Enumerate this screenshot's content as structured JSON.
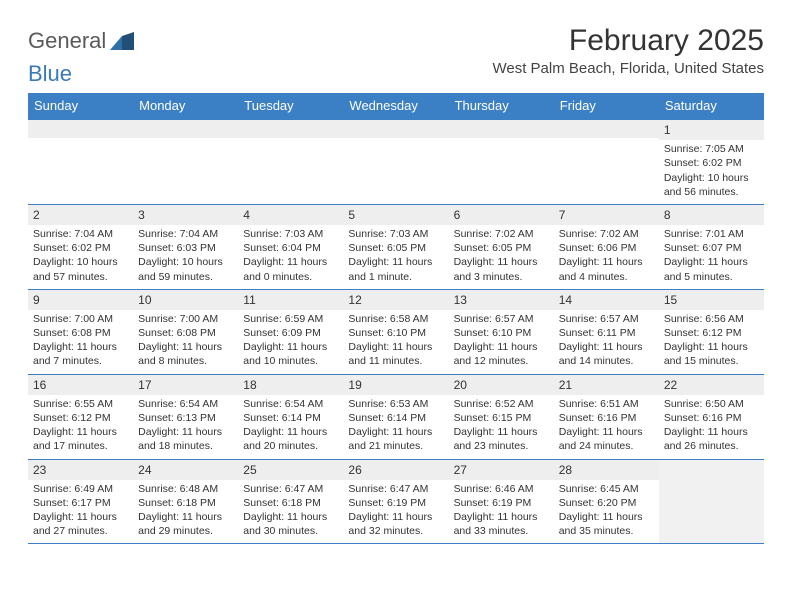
{
  "logo": {
    "general": "General",
    "blue": "Blue"
  },
  "title": "February 2025",
  "location": "West Palm Beach, Florida, United States",
  "colors": {
    "header_bg": "#3b7fc4",
    "header_text": "#ffffff",
    "band_bg": "#eeeeee",
    "border": "#3b7fc4",
    "text": "#333333",
    "logo_gray": "#5a5a5a",
    "logo_blue": "#3a7ab8",
    "page_bg": "#ffffff"
  },
  "weekdays": [
    "Sunday",
    "Monday",
    "Tuesday",
    "Wednesday",
    "Thursday",
    "Friday",
    "Saturday"
  ],
  "weeks": [
    [
      null,
      null,
      null,
      null,
      null,
      null,
      {
        "n": "1",
        "sunrise": "Sunrise: 7:05 AM",
        "sunset": "Sunset: 6:02 PM",
        "daylight": "Daylight: 10 hours and 56 minutes."
      }
    ],
    [
      {
        "n": "2",
        "sunrise": "Sunrise: 7:04 AM",
        "sunset": "Sunset: 6:02 PM",
        "daylight": "Daylight: 10 hours and 57 minutes."
      },
      {
        "n": "3",
        "sunrise": "Sunrise: 7:04 AM",
        "sunset": "Sunset: 6:03 PM",
        "daylight": "Daylight: 10 hours and 59 minutes."
      },
      {
        "n": "4",
        "sunrise": "Sunrise: 7:03 AM",
        "sunset": "Sunset: 6:04 PM",
        "daylight": "Daylight: 11 hours and 0 minutes."
      },
      {
        "n": "5",
        "sunrise": "Sunrise: 7:03 AM",
        "sunset": "Sunset: 6:05 PM",
        "daylight": "Daylight: 11 hours and 1 minute."
      },
      {
        "n": "6",
        "sunrise": "Sunrise: 7:02 AM",
        "sunset": "Sunset: 6:05 PM",
        "daylight": "Daylight: 11 hours and 3 minutes."
      },
      {
        "n": "7",
        "sunrise": "Sunrise: 7:02 AM",
        "sunset": "Sunset: 6:06 PM",
        "daylight": "Daylight: 11 hours and 4 minutes."
      },
      {
        "n": "8",
        "sunrise": "Sunrise: 7:01 AM",
        "sunset": "Sunset: 6:07 PM",
        "daylight": "Daylight: 11 hours and 5 minutes."
      }
    ],
    [
      {
        "n": "9",
        "sunrise": "Sunrise: 7:00 AM",
        "sunset": "Sunset: 6:08 PM",
        "daylight": "Daylight: 11 hours and 7 minutes."
      },
      {
        "n": "10",
        "sunrise": "Sunrise: 7:00 AM",
        "sunset": "Sunset: 6:08 PM",
        "daylight": "Daylight: 11 hours and 8 minutes."
      },
      {
        "n": "11",
        "sunrise": "Sunrise: 6:59 AM",
        "sunset": "Sunset: 6:09 PM",
        "daylight": "Daylight: 11 hours and 10 minutes."
      },
      {
        "n": "12",
        "sunrise": "Sunrise: 6:58 AM",
        "sunset": "Sunset: 6:10 PM",
        "daylight": "Daylight: 11 hours and 11 minutes."
      },
      {
        "n": "13",
        "sunrise": "Sunrise: 6:57 AM",
        "sunset": "Sunset: 6:10 PM",
        "daylight": "Daylight: 11 hours and 12 minutes."
      },
      {
        "n": "14",
        "sunrise": "Sunrise: 6:57 AM",
        "sunset": "Sunset: 6:11 PM",
        "daylight": "Daylight: 11 hours and 14 minutes."
      },
      {
        "n": "15",
        "sunrise": "Sunrise: 6:56 AM",
        "sunset": "Sunset: 6:12 PM",
        "daylight": "Daylight: 11 hours and 15 minutes."
      }
    ],
    [
      {
        "n": "16",
        "sunrise": "Sunrise: 6:55 AM",
        "sunset": "Sunset: 6:12 PM",
        "daylight": "Daylight: 11 hours and 17 minutes."
      },
      {
        "n": "17",
        "sunrise": "Sunrise: 6:54 AM",
        "sunset": "Sunset: 6:13 PM",
        "daylight": "Daylight: 11 hours and 18 minutes."
      },
      {
        "n": "18",
        "sunrise": "Sunrise: 6:54 AM",
        "sunset": "Sunset: 6:14 PM",
        "daylight": "Daylight: 11 hours and 20 minutes."
      },
      {
        "n": "19",
        "sunrise": "Sunrise: 6:53 AM",
        "sunset": "Sunset: 6:14 PM",
        "daylight": "Daylight: 11 hours and 21 minutes."
      },
      {
        "n": "20",
        "sunrise": "Sunrise: 6:52 AM",
        "sunset": "Sunset: 6:15 PM",
        "daylight": "Daylight: 11 hours and 23 minutes."
      },
      {
        "n": "21",
        "sunrise": "Sunrise: 6:51 AM",
        "sunset": "Sunset: 6:16 PM",
        "daylight": "Daylight: 11 hours and 24 minutes."
      },
      {
        "n": "22",
        "sunrise": "Sunrise: 6:50 AM",
        "sunset": "Sunset: 6:16 PM",
        "daylight": "Daylight: 11 hours and 26 minutes."
      }
    ],
    [
      {
        "n": "23",
        "sunrise": "Sunrise: 6:49 AM",
        "sunset": "Sunset: 6:17 PM",
        "daylight": "Daylight: 11 hours and 27 minutes."
      },
      {
        "n": "24",
        "sunrise": "Sunrise: 6:48 AM",
        "sunset": "Sunset: 6:18 PM",
        "daylight": "Daylight: 11 hours and 29 minutes."
      },
      {
        "n": "25",
        "sunrise": "Sunrise: 6:47 AM",
        "sunset": "Sunset: 6:18 PM",
        "daylight": "Daylight: 11 hours and 30 minutes."
      },
      {
        "n": "26",
        "sunrise": "Sunrise: 6:47 AM",
        "sunset": "Sunset: 6:19 PM",
        "daylight": "Daylight: 11 hours and 32 minutes."
      },
      {
        "n": "27",
        "sunrise": "Sunrise: 6:46 AM",
        "sunset": "Sunset: 6:19 PM",
        "daylight": "Daylight: 11 hours and 33 minutes."
      },
      {
        "n": "28",
        "sunrise": "Sunrise: 6:45 AM",
        "sunset": "Sunset: 6:20 PM",
        "daylight": "Daylight: 11 hours and 35 minutes."
      },
      null
    ]
  ]
}
